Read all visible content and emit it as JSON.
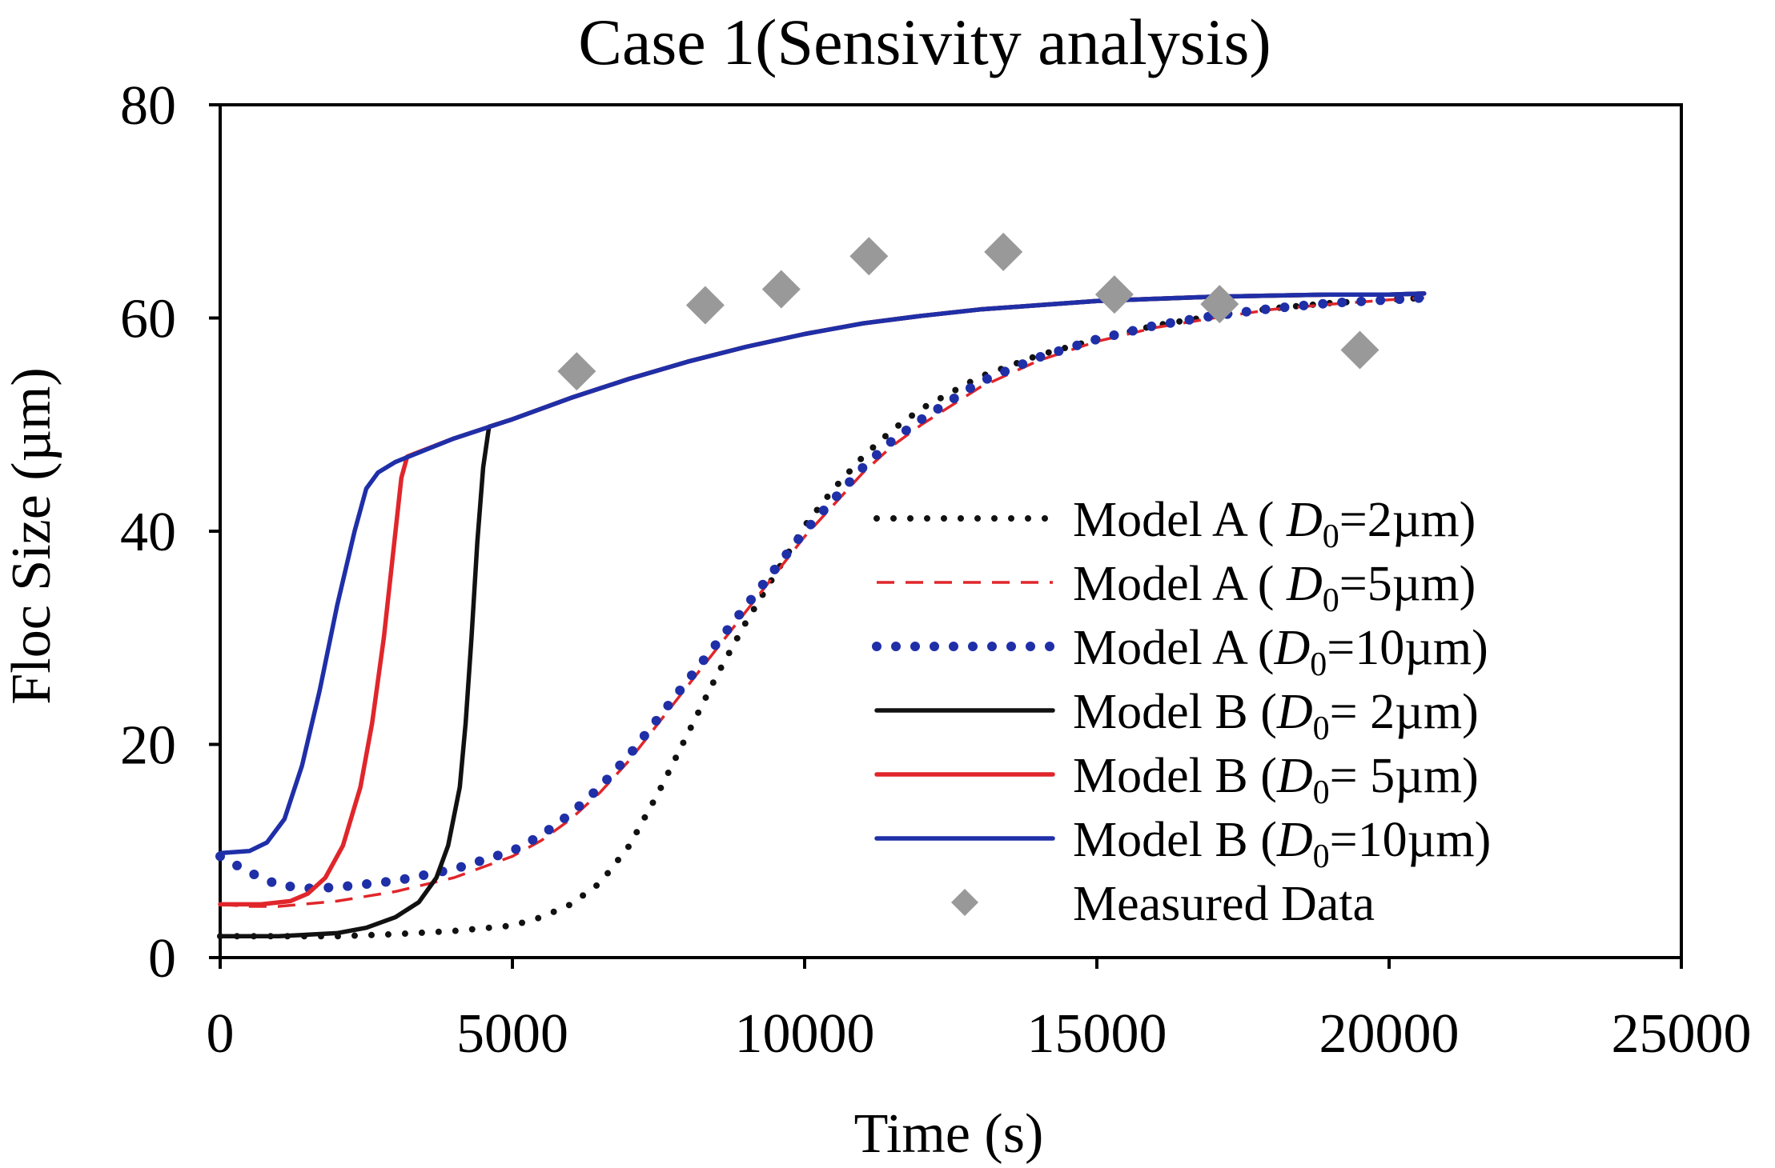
{
  "chart_data": {
    "type": "line",
    "title": "Case 1(Sensivity analysis)",
    "xlabel": "Time (s)",
    "ylabel": "Floc Size (µm)",
    "xlim": [
      0,
      25000
    ],
    "ylim": [
      0,
      80
    ],
    "xticks": [
      0,
      5000,
      10000,
      15000,
      20000,
      25000
    ],
    "yticks": [
      0,
      20,
      40,
      60,
      80
    ],
    "grid": false,
    "legend_position": "right-center",
    "series": [
      {
        "name": "Model A ( D0=2µm)",
        "legend_parts": {
          "prefix": "Model A ( ",
          "var": "D",
          "sub": "0",
          "suffix": "=2µm)"
        },
        "style": "dotted",
        "color": "#111111",
        "x": [
          0,
          1000,
          2000,
          3000,
          4000,
          5000,
          5500,
          6000,
          6500,
          7000,
          7500,
          8000,
          8500,
          9000,
          9500,
          10000,
          10500,
          11000,
          11500,
          12000,
          12500,
          13000,
          13500,
          14000,
          15000,
          16000,
          17000,
          18000,
          19000,
          20000,
          20600
        ],
        "y": [
          2,
          2,
          2,
          2.2,
          2.5,
          3,
          3.8,
          5,
          7,
          10.5,
          15.5,
          21,
          26.5,
          31.5,
          36,
          40.5,
          44,
          47,
          49.5,
          51.5,
          53,
          54.5,
          55.5,
          56.5,
          58,
          59.3,
          60.2,
          60.9,
          61.4,
          61.7,
          61.9
        ]
      },
      {
        "name": "Model A ( D0=5µm)",
        "legend_parts": {
          "prefix": "Model A ( ",
          "var": "D",
          "sub": "0",
          "suffix": "=5µm)"
        },
        "style": "dashed",
        "color": "#e0262b",
        "x": [
          0,
          500,
          1000,
          2000,
          3000,
          4000,
          5000,
          5500,
          6000,
          6500,
          7000,
          7500,
          8000,
          8500,
          9000,
          9500,
          10000,
          10500,
          11000,
          11500,
          12000,
          13000,
          14000,
          15000,
          16000,
          17000,
          18000,
          19000,
          20000,
          20600
        ],
        "y": [
          5,
          4.8,
          4.8,
          5.3,
          6.2,
          7.5,
          9.5,
          11,
          13,
          15.5,
          18.5,
          22,
          25.5,
          29,
          32.5,
          36,
          39.5,
          42.5,
          45.5,
          48,
          50,
          53.5,
          56,
          57.8,
          59.1,
          60,
          60.8,
          61.3,
          61.7,
          61.9
        ]
      },
      {
        "name": "Model A (D0=10µm)",
        "legend_parts": {
          "prefix": "Model A (",
          "var": "D",
          "sub": "0",
          "suffix": "=10µm)"
        },
        "style": "dotted-round",
        "color": "#1f2fa8",
        "x": [
          0,
          500,
          1000,
          1500,
          2000,
          3000,
          4000,
          5000,
          5500,
          6000,
          6500,
          7000,
          7500,
          8000,
          8500,
          9000,
          9500,
          10000,
          10500,
          11000,
          11500,
          12000,
          13000,
          14000,
          15000,
          16000,
          17000,
          18000,
          19000,
          20000,
          20600
        ],
        "y": [
          9.5,
          8,
          6.8,
          6.5,
          6.6,
          7.2,
          8.3,
          10,
          11.5,
          13.5,
          16,
          19,
          22.5,
          26,
          29.5,
          33,
          36.5,
          40,
          43,
          46,
          48.5,
          50.5,
          54,
          56.3,
          58,
          59.3,
          60.2,
          60.9,
          61.4,
          61.7,
          61.9
        ]
      },
      {
        "name": "Model B (D0= 2µm)",
        "legend_parts": {
          "prefix": "Model B (",
          "var": "D",
          "sub": "0",
          "suffix": "= 2µm)"
        },
        "style": "solid",
        "color": "#111111",
        "x": [
          0,
          1000,
          2000,
          2500,
          3000,
          3400,
          3700,
          3900,
          4100,
          4200,
          4300,
          4400,
          4500,
          4600,
          5000,
          6000,
          7000,
          8000,
          9000,
          10000,
          11000,
          12000,
          13000,
          14000,
          15000,
          16000,
          17000,
          18000,
          19000,
          20000,
          20600
        ],
        "y": [
          2,
          2,
          2.3,
          2.8,
          3.8,
          5.2,
          7.5,
          10.5,
          16,
          22,
          30,
          39,
          46,
          49.8,
          50.5,
          52.5,
          54.3,
          55.9,
          57.3,
          58.5,
          59.5,
          60.2,
          60.8,
          61.2,
          61.6,
          61.8,
          62,
          62.1,
          62.2,
          62.2,
          62.3
        ]
      },
      {
        "name": "Model B (D0= 5µm)",
        "legend_parts": {
          "prefix": "Model B (",
          "var": "D",
          "sub": "0",
          "suffix": "= 5µm)"
        },
        "style": "solid",
        "color": "#e0262b",
        "x": [
          0,
          700,
          1200,
          1500,
          1800,
          2100,
          2400,
          2600,
          2800,
          3000,
          3100,
          3200,
          4000,
          5000,
          6000,
          7000,
          8000,
          9000,
          10000,
          11000,
          12000,
          13000,
          14000,
          15000,
          16000,
          17000,
          18000,
          19000,
          20000,
          20600
        ],
        "y": [
          5,
          5,
          5.3,
          6,
          7.5,
          10.5,
          16,
          22,
          30,
          40,
          45,
          47,
          48.7,
          50.5,
          52.5,
          54.3,
          55.9,
          57.3,
          58.5,
          59.5,
          60.2,
          60.8,
          61.2,
          61.6,
          61.8,
          62,
          62.1,
          62.2,
          62.2,
          62.3
        ]
      },
      {
        "name": "Model B (D0=10µm)",
        "legend_parts": {
          "prefix": "Model B (",
          "var": "D",
          "sub": "0",
          "suffix": "=10µm)"
        },
        "style": "solid",
        "color": "#1f2fa8",
        "x": [
          0,
          500,
          800,
          1100,
          1400,
          1700,
          2000,
          2300,
          2500,
          2700,
          3000,
          4000,
          5000,
          6000,
          7000,
          8000,
          9000,
          10000,
          11000,
          12000,
          13000,
          14000,
          15000,
          16000,
          17000,
          18000,
          19000,
          20000,
          20600
        ],
        "y": [
          9.8,
          10,
          10.8,
          13,
          18,
          25,
          33,
          40,
          44,
          45.5,
          46.5,
          48.7,
          50.5,
          52.5,
          54.3,
          55.9,
          57.3,
          58.5,
          59.5,
          60.2,
          60.8,
          61.2,
          61.6,
          61.8,
          62,
          62.1,
          62.2,
          62.2,
          62.3
        ]
      },
      {
        "name": "Measured Data",
        "legend_parts": {
          "prefix": "Measured Data",
          "var": "",
          "sub": "",
          "suffix": ""
        },
        "style": "marker-diamond",
        "color": "#999999",
        "x": [
          6100,
          8300,
          9600,
          11100,
          13400,
          15300,
          17100,
          19500
        ],
        "y": [
          55,
          61.2,
          62.7,
          65.8,
          66.2,
          62.2,
          61.3,
          57
        ]
      }
    ]
  }
}
